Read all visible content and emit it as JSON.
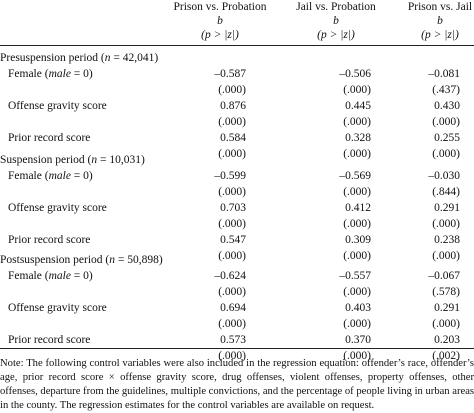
{
  "header": {
    "columns": [
      {
        "title": "Prison vs. Probation",
        "coef": "b",
        "pval": "(p > |z|)"
      },
      {
        "title": "Jail vs. Probation",
        "coef": "b",
        "pval": "(p > |z|)"
      },
      {
        "title": "Prison vs. Jail",
        "coef": "b",
        "pval": "(p > |z|)"
      }
    ]
  },
  "sections": [
    {
      "label_prefix": "Presuspension period (",
      "n_symbol": "n",
      "label_suffix": " = 42,041)",
      "rows": [
        {
          "prefix": "Female (",
          "italic": "male",
          "suffix": " = 0)",
          "values": [
            "–0.587",
            "–0.506",
            "–0.081"
          ],
          "pvals": [
            "(.000)",
            "(.000)",
            "(.437)"
          ]
        },
        {
          "prefix": "Offense gravity score",
          "italic": "",
          "suffix": "",
          "values": [
            "0.876",
            "0.445",
            "0.430"
          ],
          "pvals": [
            "(.000)",
            "(.000)",
            "(.000)"
          ]
        },
        {
          "prefix": "Prior record score",
          "italic": "",
          "suffix": "",
          "values": [
            "0.584",
            "0.328",
            "0.255"
          ],
          "pvals": [
            "(.000)",
            "(.000)",
            "(.000)"
          ]
        }
      ]
    },
    {
      "label_prefix": "Suspension period (",
      "n_symbol": "n",
      "label_suffix": " = 10,031)",
      "rows": [
        {
          "prefix": "Female (",
          "italic": "male",
          "suffix": " = 0)",
          "values": [
            "–0.599",
            "–0.569",
            "–0.030"
          ],
          "pvals": [
            "(.000)",
            "(.000)",
            "(.844)"
          ]
        },
        {
          "prefix": "Offense gravity score",
          "italic": "",
          "suffix": "",
          "values": [
            "0.703",
            "0.412",
            "0.291"
          ],
          "pvals": [
            "(.000)",
            "(.000)",
            "(.000)"
          ]
        },
        {
          "prefix": "Prior record score",
          "italic": "",
          "suffix": "",
          "values": [
            "0.547",
            "0.309",
            "0.238"
          ],
          "pvals": [
            "(.000)",
            "(.000)",
            "(.000)"
          ]
        }
      ]
    },
    {
      "label_prefix": "Postsuspension period (",
      "n_symbol": "n",
      "label_suffix": " = 50,898)",
      "rows": [
        {
          "prefix": "Female (",
          "italic": "male",
          "suffix": " = 0)",
          "values": [
            "–0.624",
            "–0.557",
            "–0.067"
          ],
          "pvals": [
            "(.000)",
            "(.000)",
            "(.578)"
          ]
        },
        {
          "prefix": "Offense gravity score",
          "italic": "",
          "suffix": "",
          "values": [
            "0.694",
            "0.403",
            "0.291"
          ],
          "pvals": [
            "(.000)",
            "(.000)",
            "(.000)"
          ]
        },
        {
          "prefix": "Prior record score",
          "italic": "",
          "suffix": "",
          "values": [
            "0.573",
            "0.370",
            "0.203"
          ],
          "pvals": [
            "(.000)",
            "(.000)",
            "(.002)"
          ]
        }
      ]
    }
  ],
  "note": "Note: The following control variables were also included in the regression equation: offender’s race, offender’s age, prior record score × offense gravity score, drug offenses, violent offenses, property offenses, other offenses, departure from the guidelines, multiple convictions, and the percentage of people living in urban areas in the county. The regression estimates for the control variables are available on request."
}
